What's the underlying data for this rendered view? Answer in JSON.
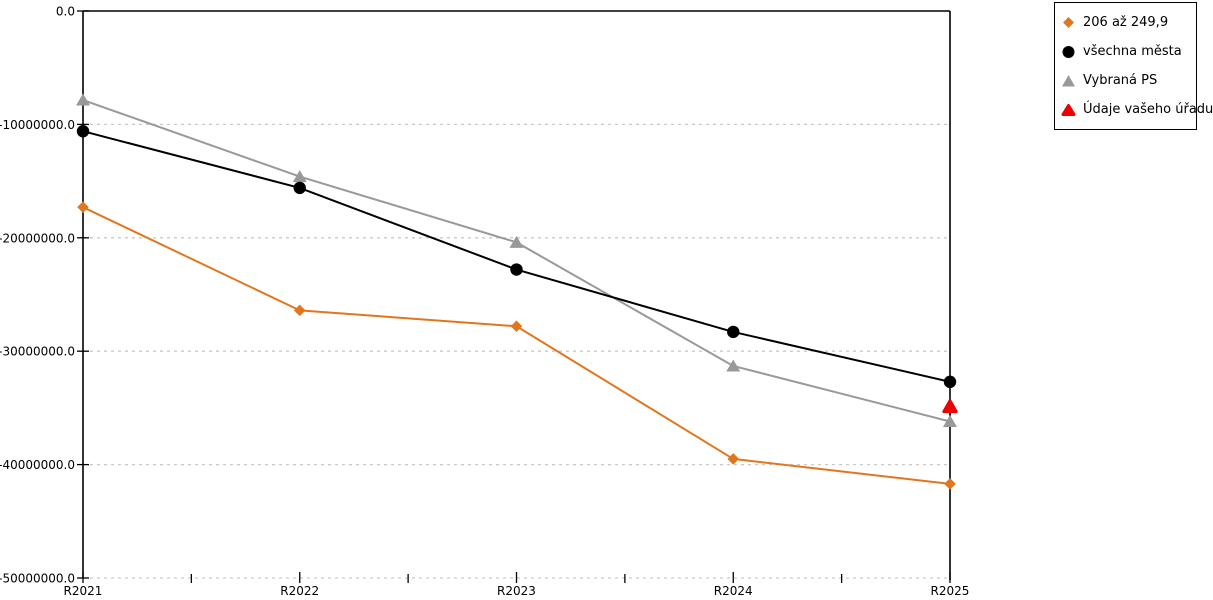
{
  "chart_data": {
    "type": "line",
    "title": "",
    "xlabel": "",
    "ylabel": "",
    "grid": true,
    "legend_position": "top-right",
    "categories": [
      "R2021",
      "R2022",
      "R2023",
      "R2024",
      "R2025"
    ],
    "series": [
      {
        "name": "206 až 249,9",
        "color": "#E0771E",
        "marker": "diamond",
        "values": [
          -17300000,
          -26400000,
          -27800000,
          -39500000,
          -41700000
        ]
      },
      {
        "name": "všechna města",
        "color": "#000000",
        "marker": "circle",
        "values": [
          -10600000,
          -15600000,
          -22800000,
          -28300000,
          -32700000
        ]
      },
      {
        "name": "Vybraná PS",
        "color": "#999999",
        "marker": "triangle",
        "values": [
          -7850000,
          -14600000,
          -20400000,
          -31300000,
          -36200000
        ]
      },
      {
        "name": "Údaje vašeho úřadu",
        "color": "#EE0000",
        "marker": "triangle-rounded",
        "values": [
          null,
          null,
          null,
          null,
          -34900000
        ]
      }
    ],
    "yticks": {
      "values": [
        0,
        -10000000,
        -20000000,
        -30000000,
        -40000000,
        -50000000
      ],
      "labels": [
        "0.0",
        "-10000000.0",
        "-20000000.0",
        "-30000000.0",
        "-40000000.0",
        "-50000000.0"
      ]
    },
    "ylim": [
      -50000000,
      0
    ],
    "axis_color": "#000000",
    "gridline_color": "#c9c9c9"
  }
}
